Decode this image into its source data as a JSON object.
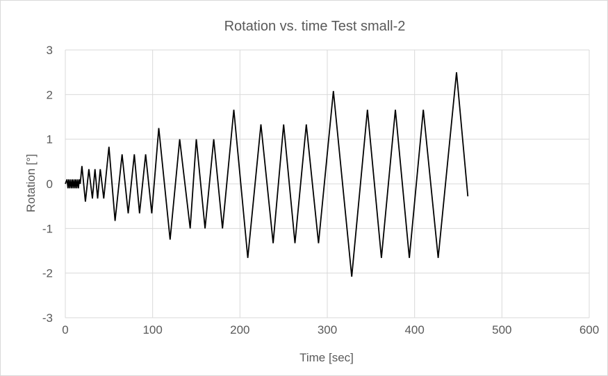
{
  "chart_data": {
    "type": "line",
    "title": "Rotation vs. time Test small-2",
    "xlabel": "Time  [sec]",
    "ylabel": "Rotation [°]",
    "xlim": [
      0,
      600
    ],
    "ylim": [
      -3,
      3
    ],
    "x_ticks": [
      0,
      100,
      200,
      300,
      400,
      500,
      600
    ],
    "y_ticks": [
      3,
      2,
      1,
      0,
      -1,
      -2,
      -3
    ],
    "grid": true,
    "legend": "none",
    "line_color": "#000000",
    "series": [
      {
        "x": [
          0,
          2,
          3,
          4,
          5,
          6,
          7,
          8,
          9,
          10,
          11,
          12,
          13,
          14,
          15,
          16,
          17,
          19,
          23,
          27,
          31,
          34,
          37,
          40,
          44,
          50,
          57,
          65,
          72,
          79,
          85,
          92,
          99,
          107,
          120,
          131,
          143,
          150,
          160,
          170,
          180,
          193,
          209,
          224,
          238,
          250,
          263,
          276,
          290,
          307,
          328,
          346,
          362,
          378,
          394,
          410,
          427,
          448,
          461
        ],
        "y": [
          0,
          0.1,
          -0.1,
          0.1,
          -0.1,
          0.1,
          -0.1,
          0.1,
          -0.1,
          0.1,
          -0.1,
          0.1,
          -0.1,
          0.1,
          -0.1,
          0.1,
          0,
          0.4,
          -0.4,
          0.33,
          -0.33,
          0.33,
          -0.33,
          0.33,
          -0.33,
          0.83,
          -0.83,
          0.66,
          -0.66,
          0.66,
          -0.66,
          0.66,
          -0.66,
          1.25,
          -1.25,
          1.0,
          -1.0,
          1.0,
          -1.0,
          1.0,
          -1.0,
          1.66,
          -1.66,
          1.33,
          -1.33,
          1.33,
          -1.33,
          1.33,
          -1.33,
          2.08,
          -2.08,
          1.66,
          -1.66,
          1.66,
          -1.66,
          1.66,
          -1.66,
          2.5,
          -0.28
        ]
      }
    ]
  }
}
